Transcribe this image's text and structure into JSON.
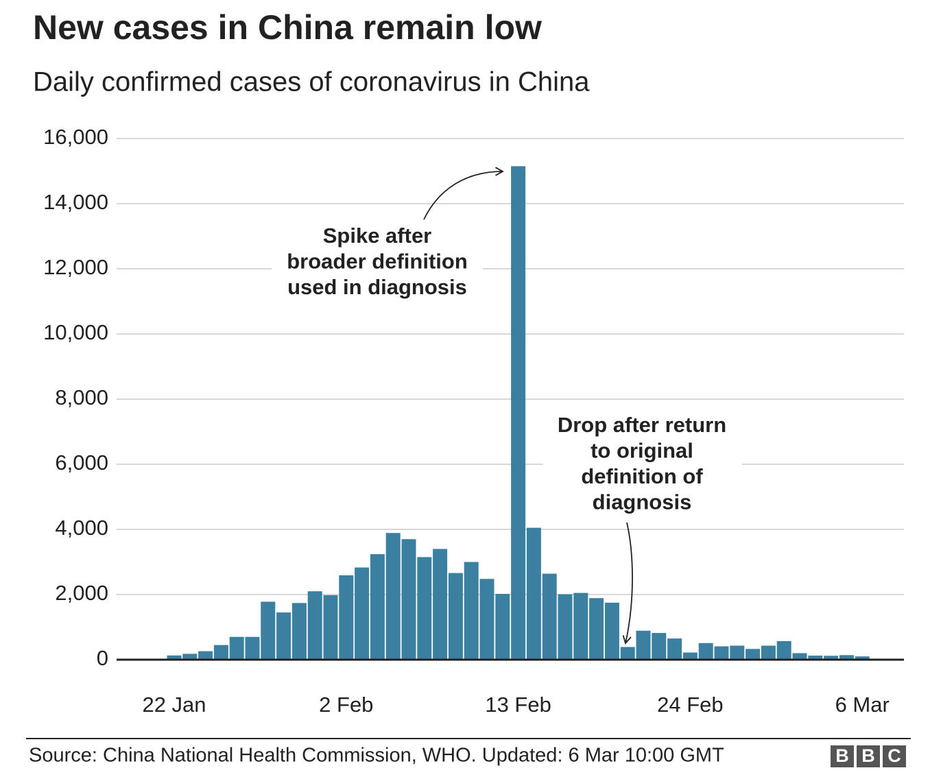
{
  "chart_data": {
    "type": "bar",
    "title": "New cases in China remain low",
    "subtitle": "Daily confirmed cases of coronavirus in China",
    "categories": [
      "22 Jan",
      null,
      null,
      null,
      null,
      null,
      null,
      null,
      null,
      null,
      null,
      "2 Feb",
      null,
      null,
      null,
      null,
      null,
      null,
      null,
      null,
      null,
      null,
      "13 Feb",
      null,
      null,
      null,
      null,
      null,
      null,
      null,
      null,
      null,
      null,
      "24 Feb",
      null,
      null,
      null,
      null,
      null,
      null,
      null,
      null,
      null,
      null,
      "6 Mar"
    ],
    "values": [
      130,
      180,
      260,
      450,
      700,
      700,
      1780,
      1450,
      1740,
      2100,
      1980,
      2590,
      2830,
      3240,
      3890,
      3700,
      3150,
      3400,
      2660,
      3000,
      2480,
      2020,
      15150,
      4050,
      2640,
      2010,
      2050,
      1890,
      1750,
      390,
      890,
      820,
      650,
      220,
      510,
      410,
      430,
      330,
      430,
      570,
      200,
      125,
      120,
      140,
      100
    ],
    "color": "#3b7fa1",
    "ylim": [
      0,
      16000
    ],
    "yticks": [
      0,
      {
        "value": 2000,
        "label": "2,000"
      },
      {
        "value": 4000,
        "label": "4,000"
      },
      {
        "value": 6000,
        "label": "6,000"
      },
      {
        "value": 8000,
        "label": "8,000"
      },
      {
        "value": 10000,
        "label": "10,000"
      },
      {
        "value": 12000,
        "label": "12,000"
      },
      {
        "value": 14000,
        "label": "14,000"
      },
      {
        "value": 16000,
        "label": "16,000"
      }
    ],
    "grid": true,
    "annotations": [
      {
        "lines": [
          "Spike after",
          "broader definition",
          "used in diagnosis"
        ]
      },
      {
        "lines": [
          "Drop after return",
          "to original",
          "definition of",
          "diagnosis"
        ]
      }
    ],
    "source": "Source: China National Health Commission, WHO. Updated: 6 Mar 10:00 GMT",
    "logo": [
      "B",
      "B",
      "C"
    ]
  }
}
